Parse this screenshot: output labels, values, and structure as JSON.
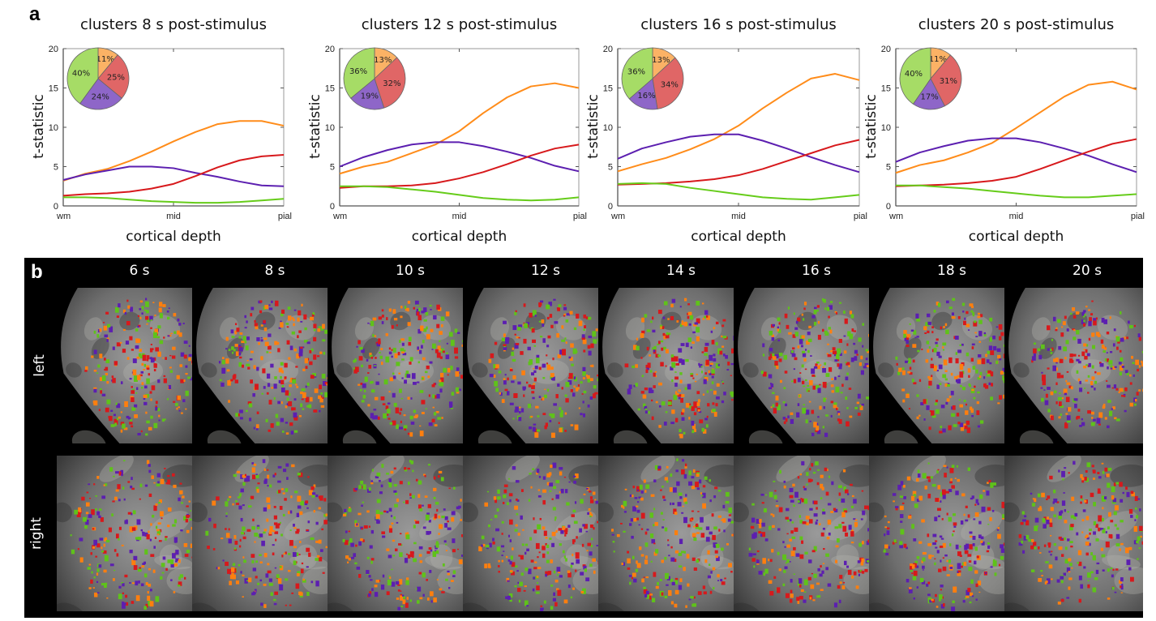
{
  "panel_a_letter": "a",
  "panel_b_letter": "b",
  "series_colors": {
    "orange": "#ff8c1a",
    "red": "#d7191c",
    "purple": "#5c1fb0",
    "green": "#66cc1a"
  },
  "pie_colors": {
    "orange": "#fbb265",
    "red": "#e06666",
    "purple": "#8e66c8",
    "green": "#a6dc66"
  },
  "chart_data": [
    {
      "type": "line",
      "title": "clusters 8 s post-stimulus",
      "xlabel": "cortical depth",
      "ylabel": "t-statistic",
      "x_tick_labels": [
        "wm",
        "mid",
        "pial"
      ],
      "y_ticks": [
        0,
        5,
        10,
        15,
        20
      ],
      "ylim": [
        0,
        20
      ],
      "x": [
        0,
        0.1,
        0.2,
        0.3,
        0.4,
        0.5,
        0.6,
        0.7,
        0.8,
        0.9,
        1.0
      ],
      "series": [
        {
          "name": "orange",
          "values": [
            3.2,
            4.1,
            4.7,
            5.7,
            6.9,
            8.2,
            9.4,
            10.4,
            10.8,
            10.8,
            10.2
          ]
        },
        {
          "name": "purple",
          "values": [
            3.3,
            4.0,
            4.5,
            5.0,
            5.0,
            4.8,
            4.2,
            3.7,
            3.1,
            2.6,
            2.5
          ]
        },
        {
          "name": "red",
          "values": [
            1.3,
            1.5,
            1.6,
            1.8,
            2.2,
            2.8,
            3.8,
            4.9,
            5.8,
            6.3,
            6.5
          ]
        },
        {
          "name": "green",
          "values": [
            1.1,
            1.1,
            1.0,
            0.8,
            0.6,
            0.5,
            0.4,
            0.4,
            0.5,
            0.7,
            0.9
          ]
        }
      ],
      "pie": [
        {
          "name": "orange",
          "value": 11,
          "label": "11%"
        },
        {
          "name": "red",
          "value": 25,
          "label": "25%"
        },
        {
          "name": "purple",
          "value": 24,
          "label": "24%"
        },
        {
          "name": "green",
          "value": 40,
          "label": "40%"
        }
      ]
    },
    {
      "type": "line",
      "title": "clusters 12 s post-stimulus",
      "xlabel": "cortical depth",
      "ylabel": "t-statistic",
      "x_tick_labels": [
        "wm",
        "mid",
        "pial"
      ],
      "y_ticks": [
        0,
        5,
        10,
        15,
        20
      ],
      "ylim": [
        0,
        20
      ],
      "x": [
        0,
        0.1,
        0.2,
        0.3,
        0.4,
        0.5,
        0.6,
        0.7,
        0.8,
        0.9,
        1.0
      ],
      "series": [
        {
          "name": "orange",
          "values": [
            4.1,
            5.0,
            5.6,
            6.7,
            7.8,
            9.5,
            11.8,
            13.8,
            15.2,
            15.6,
            15.0
          ]
        },
        {
          "name": "purple",
          "values": [
            5.0,
            6.2,
            7.1,
            7.8,
            8.1,
            8.1,
            7.6,
            6.9,
            6.1,
            5.1,
            4.4
          ]
        },
        {
          "name": "red",
          "values": [
            2.3,
            2.5,
            2.5,
            2.6,
            2.9,
            3.5,
            4.3,
            5.3,
            6.4,
            7.3,
            7.8
          ]
        },
        {
          "name": "green",
          "values": [
            2.5,
            2.5,
            2.4,
            2.1,
            1.8,
            1.4,
            1.0,
            0.8,
            0.7,
            0.8,
            1.1
          ]
        }
      ],
      "pie": [
        {
          "name": "orange",
          "value": 13,
          "label": "13%"
        },
        {
          "name": "red",
          "value": 32,
          "label": "32%"
        },
        {
          "name": "purple",
          "value": 19,
          "label": "19%"
        },
        {
          "name": "green",
          "value": 36,
          "label": "36%"
        }
      ]
    },
    {
      "type": "line",
      "title": "clusters 16 s post-stimulus",
      "xlabel": "cortical depth",
      "ylabel": "t-statistic",
      "x_tick_labels": [
        "wm",
        "mid",
        "pial"
      ],
      "y_ticks": [
        0,
        5,
        10,
        15,
        20
      ],
      "ylim": [
        0,
        20
      ],
      "x": [
        0,
        0.1,
        0.2,
        0.3,
        0.4,
        0.5,
        0.6,
        0.7,
        0.8,
        0.9,
        1.0
      ],
      "series": [
        {
          "name": "orange",
          "values": [
            4.4,
            5.3,
            6.1,
            7.2,
            8.5,
            10.2,
            12.4,
            14.4,
            16.2,
            16.8,
            16.0
          ]
        },
        {
          "name": "purple",
          "values": [
            6.0,
            7.3,
            8.1,
            8.8,
            9.1,
            9.1,
            8.3,
            7.3,
            6.2,
            5.2,
            4.3
          ]
        },
        {
          "name": "red",
          "values": [
            2.7,
            2.8,
            2.9,
            3.1,
            3.4,
            3.9,
            4.7,
            5.7,
            6.7,
            7.7,
            8.4
          ]
        },
        {
          "name": "green",
          "values": [
            2.8,
            2.9,
            2.8,
            2.3,
            1.9,
            1.5,
            1.1,
            0.9,
            0.8,
            1.1,
            1.4
          ]
        }
      ],
      "pie": [
        {
          "name": "orange",
          "value": 13,
          "label": "13%"
        },
        {
          "name": "red",
          "value": 34,
          "label": "34%"
        },
        {
          "name": "purple",
          "value": 16,
          "label": "16%"
        },
        {
          "name": "green",
          "value": 36,
          "label": "36%"
        }
      ]
    },
    {
      "type": "line",
      "title": "clusters 20 s post-stimulus",
      "xlabel": "cortical depth",
      "ylabel": "t-statistic",
      "x_tick_labels": [
        "wm",
        "mid",
        "pial"
      ],
      "y_ticks": [
        0,
        5,
        10,
        15,
        20
      ],
      "ylim": [
        0,
        20
      ],
      "x": [
        0,
        0.1,
        0.2,
        0.3,
        0.4,
        0.5,
        0.6,
        0.7,
        0.8,
        0.9,
        1.0
      ],
      "series": [
        {
          "name": "orange",
          "values": [
            4.2,
            5.2,
            5.8,
            6.8,
            8.0,
            9.9,
            11.9,
            13.9,
            15.4,
            15.8,
            14.8
          ]
        },
        {
          "name": "purple",
          "values": [
            5.6,
            6.8,
            7.6,
            8.3,
            8.6,
            8.6,
            8.1,
            7.3,
            6.4,
            5.3,
            4.3
          ]
        },
        {
          "name": "red",
          "values": [
            2.5,
            2.6,
            2.7,
            2.9,
            3.2,
            3.7,
            4.7,
            5.8,
            6.9,
            7.9,
            8.5
          ]
        },
        {
          "name": "green",
          "values": [
            2.6,
            2.6,
            2.4,
            2.2,
            1.9,
            1.6,
            1.3,
            1.1,
            1.1,
            1.3,
            1.5
          ]
        }
      ],
      "pie": [
        {
          "name": "orange",
          "value": 11,
          "label": "11%"
        },
        {
          "name": "red",
          "value": 31,
          "label": "31%"
        },
        {
          "name": "purple",
          "value": 17,
          "label": "17%"
        },
        {
          "name": "green",
          "value": 40,
          "label": "40%"
        }
      ]
    }
  ],
  "panel_b": {
    "time_labels": [
      "6 s",
      "8 s",
      "10 s",
      "12 s",
      "14 s",
      "16 s",
      "18 s",
      "20 s"
    ],
    "row_labels": [
      "left",
      "right"
    ]
  }
}
